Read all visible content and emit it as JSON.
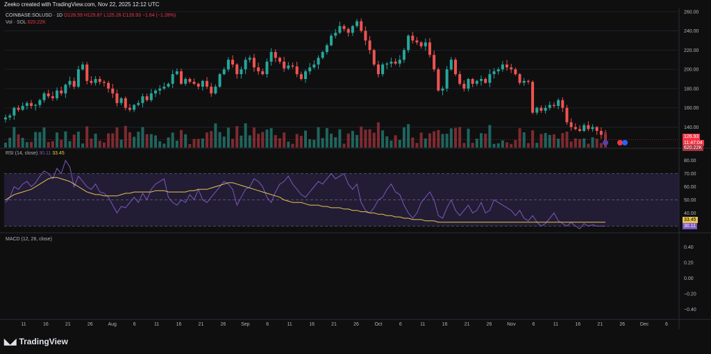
{
  "header": {
    "credit": "Zeeko created with TradingView.com, Nov 22, 2025 12:12 UTC"
  },
  "legend": {
    "symbol": "COINBASE:SOLUSD · 1D",
    "ohlc": "O128.59 H129.87 L125.26 C126.93 −1.64 (−1.28%)",
    "vol_label": "Vol · SOL",
    "vol_value": "620.22K"
  },
  "rsi_legend": {
    "label": "RSI (14, close)",
    "v1": "30.11",
    "v2": "33.45"
  },
  "macd_legend": {
    "label": "MACD (12, 26, close)"
  },
  "branding": {
    "logo": "TradingView"
  },
  "price_tags": {
    "last": "126.93",
    "countdown": "11:47:04",
    "vol": "620.22K",
    "rsi1": "30.11",
    "rsi2": "33.45"
  },
  "chart_data": [
    {
      "type": "candlestick",
      "title": "COINBASE:SOLUSD · 1D",
      "yticks": [
        "260.00",
        "240.00",
        "220.00",
        "200.00",
        "180.00",
        "160.00",
        "140.00"
      ],
      "ylim": [
        118,
        262
      ],
      "xticks": [
        "11",
        "16",
        "21",
        "26",
        "Aug",
        "6",
        "11",
        "16",
        "21",
        "26",
        "Sep",
        "6",
        "11",
        "16",
        "21",
        "26",
        "Oct",
        "6",
        "11",
        "16",
        "21",
        "26",
        "Nov",
        "6",
        "11",
        "16",
        "21",
        "26",
        "Dec",
        "6"
      ],
      "closes": [
        150,
        152,
        160,
        158,
        162,
        165,
        162,
        163,
        168,
        175,
        172,
        170,
        178,
        175,
        184,
        188,
        182,
        200,
        205,
        188,
        186,
        190,
        187,
        186,
        180,
        175,
        165,
        170,
        160,
        158,
        163,
        165,
        172,
        168,
        175,
        178,
        180,
        182,
        185,
        195,
        198,
        185,
        190,
        187,
        185,
        182,
        188,
        182,
        175,
        182,
        195,
        200,
        210,
        205,
        195,
        200,
        210,
        212,
        202,
        198,
        195,
        208,
        218,
        212,
        208,
        201,
        204,
        203,
        195,
        190,
        198,
        202,
        205,
        212,
        218,
        225,
        235,
        238,
        245,
        242,
        238,
        245,
        250,
        240,
        230,
        220,
        205,
        195,
        205,
        206,
        208,
        206,
        210,
        220,
        235,
        230,
        228,
        224,
        228,
        215,
        200,
        178,
        180,
        200,
        210,
        195,
        185,
        180,
        190,
        185,
        188,
        190,
        186,
        195,
        198,
        200,
        205,
        202,
        200,
        195,
        186,
        188,
        187,
        155,
        160,
        157,
        160,
        163,
        162,
        168,
        160,
        145,
        140,
        138,
        136,
        142,
        138,
        140,
        136,
        132,
        127
      ],
      "volume_series": "Vol · SOL"
    },
    {
      "type": "line",
      "title": "RSI (14, close)",
      "yticks": [
        "80.00",
        "70.00",
        "60.00",
        "50.00",
        "40.00"
      ],
      "ylim": [
        26,
        84
      ],
      "band": [
        30,
        70
      ],
      "mid": 50,
      "series": [
        {
          "name": "RSI",
          "color": "#7e57c2",
          "values": [
            48,
            52,
            60,
            58,
            62,
            64,
            60,
            63,
            68,
            72,
            70,
            66,
            74,
            70,
            80,
            75,
            60,
            68,
            64,
            60,
            58,
            62,
            56,
            55,
            52,
            46,
            40,
            45,
            44,
            48,
            52,
            48,
            55,
            50,
            58,
            62,
            64,
            66,
            52,
            48,
            46,
            50,
            48,
            54,
            50,
            58,
            50,
            48,
            52,
            56,
            60,
            64,
            62,
            58,
            46,
            52,
            58,
            60,
            66,
            64,
            60,
            52,
            48,
            56,
            62,
            64,
            68,
            62,
            58,
            54,
            52,
            56,
            60,
            64,
            62,
            66,
            70,
            66,
            68,
            70,
            62,
            58,
            62,
            48,
            42,
            40,
            44,
            50,
            52,
            58,
            62,
            56,
            54,
            46,
            40,
            36,
            40,
            48,
            52,
            56,
            50,
            38,
            36,
            44,
            50,
            42,
            38,
            42,
            46,
            40,
            42,
            48,
            40,
            42,
            50,
            48,
            46,
            44,
            42,
            38,
            42,
            36,
            34,
            38,
            33,
            30,
            32,
            36,
            40,
            34,
            32,
            30,
            33,
            30,
            28,
            32,
            30,
            31,
            30,
            30,
            30
          ]
        },
        {
          "name": "RSI-based MA",
          "color": "#e8c550",
          "values": [
            50,
            52,
            54,
            55,
            56,
            57,
            58,
            60,
            62,
            64,
            66,
            67,
            67,
            66,
            65,
            64,
            62,
            60,
            58,
            56,
            55,
            54,
            54,
            53,
            53,
            53,
            53,
            54,
            55,
            55,
            56,
            56,
            56,
            56,
            56,
            57,
            57,
            57,
            56,
            56,
            56,
            56,
            56,
            57,
            57,
            58,
            58,
            58,
            59,
            60,
            61,
            62,
            63,
            63,
            62,
            61,
            60,
            59,
            58,
            57,
            56,
            55,
            54,
            53,
            52,
            50,
            49,
            48,
            48,
            48,
            47,
            46,
            46,
            46,
            45,
            45,
            44,
            44,
            44,
            43,
            43,
            42,
            42,
            41,
            41,
            40,
            40,
            39,
            39,
            38,
            38,
            37,
            37,
            36,
            36,
            35,
            35,
            35,
            34,
            34,
            34,
            33,
            33,
            33,
            33,
            33,
            33,
            33,
            33,
            33,
            33,
            33,
            33,
            33,
            33,
            33,
            33,
            33,
            33,
            33,
            33,
            33,
            33,
            33,
            33,
            33,
            33,
            33,
            33,
            33,
            33,
            33,
            33,
            33,
            33,
            33,
            33,
            33,
            33,
            33,
            33
          ]
        }
      ]
    },
    {
      "type": "line",
      "title": "MACD (12, 26, close)",
      "yticks": [
        "0.40",
        "0.20",
        "0.00",
        "−0.20",
        "−0.40"
      ],
      "ylim": [
        -0.5,
        0.5
      ],
      "series": []
    }
  ]
}
